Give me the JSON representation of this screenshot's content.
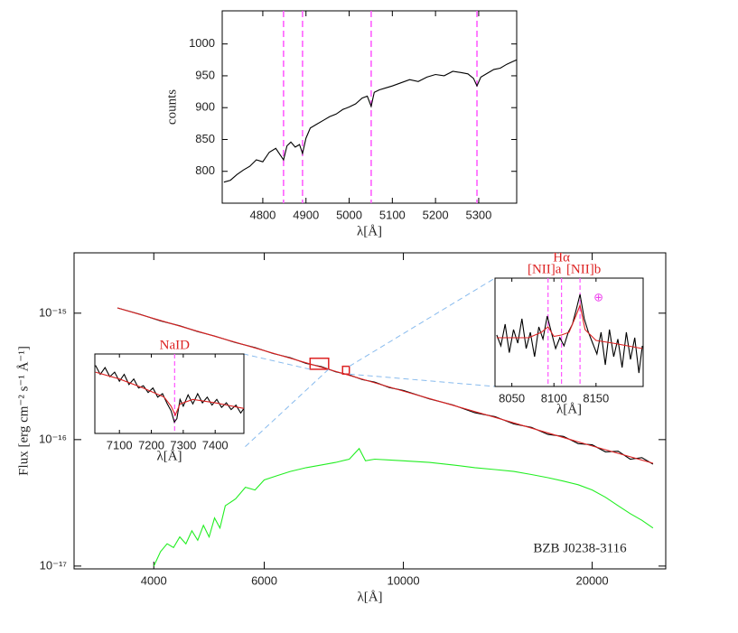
{
  "chart_data": [
    {
      "type": "line",
      "xlabel": "λ[Å]",
      "ylabel": "counts",
      "xlim": [
        4706,
        5388
      ],
      "xticks": [
        4800,
        4900,
        5000,
        5100,
        5200,
        5300
      ],
      "ylim": [
        750,
        1052
      ],
      "yticks": [
        800,
        850,
        900,
        950,
        1000
      ],
      "series": [
        {
          "color": "#000000",
          "x": [
            4710,
            4725,
            4740,
            4755,
            4770,
            4785,
            4800,
            4815,
            4830,
            4840,
            4848,
            4856,
            4865,
            4875,
            4885,
            4892,
            4900,
            4910,
            4925,
            4940,
            4955,
            4970,
            4985,
            5000,
            5015,
            5030,
            5042,
            5051,
            5058,
            5070,
            5085,
            5100,
            5120,
            5140,
            5160,
            5180,
            5200,
            5220,
            5240,
            5260,
            5275,
            5288,
            5296,
            5305,
            5320,
            5335,
            5350,
            5365,
            5378,
            5388
          ],
          "values": [
            783,
            786,
            795,
            802,
            808,
            818,
            815,
            830,
            836,
            826,
            818,
            840,
            846,
            838,
            842,
            828,
            852,
            868,
            874,
            880,
            886,
            890,
            897,
            901,
            906,
            915,
            918,
            902,
            924,
            928,
            931,
            934,
            939,
            944,
            941,
            948,
            952,
            950,
            957,
            955,
            953,
            946,
            934,
            948,
            954,
            960,
            962,
            968,
            972,
            975
          ]
        }
      ],
      "vlines": {
        "color": "#ff55ff",
        "x": [
          4848,
          4892,
          5051,
          5296
        ]
      }
    },
    {
      "type": "line",
      "xlabel": "λ[Å]",
      "ylabel": "Flux [erg cm⁻² s⁻¹ Å⁻¹]",
      "xscale": "log",
      "yscale": "log",
      "xlim": [
        2985,
        26200
      ],
      "xticks": [
        4000,
        6000,
        10000,
        20000
      ],
      "ylim": [
        9.5e-18,
        3e-15
      ],
      "yticks": [
        {
          "value": 1e-17,
          "label": "10⁻¹⁷"
        },
        {
          "value": 1e-16,
          "label": "10⁻¹⁶"
        },
        {
          "value": 1e-15,
          "label": "10⁻¹⁵"
        }
      ],
      "annotation": "BZB J0238-3116",
      "series": [
        {
          "color": "#000000",
          "x": [
            3500,
            3800,
            4100,
            4400,
            4700,
            5000,
            5400,
            5800,
            6200,
            6600,
            7000,
            7400,
            7800,
            8200,
            8600,
            9000,
            9500,
            10000,
            11000,
            12000,
            13000,
            14000,
            15000,
            16000,
            17000,
            18000,
            19000,
            20000,
            21000,
            22000,
            23000,
            24000,
            25000
          ],
          "values": [
            1.1e-15,
            9.8e-16,
            8.7e-16,
            7.95e-16,
            7.15e-16,
            6.6e-16,
            5.85e-16,
            5.35e-16,
            4.8e-16,
            4.45e-16,
            4e-16,
            3.78e-16,
            3.44e-16,
            3.25e-16,
            2.98e-16,
            2.85e-16,
            2.58e-16,
            2.45e-16,
            2.1e-16,
            1.88e-16,
            1.63e-16,
            1.52e-16,
            1.33e-16,
            1.25e-16,
            1.1e-16,
            1.06e-16,
            9.3e-17,
            9.1e-17,
            8e-17,
            8.1e-17,
            7e-17,
            7.2e-17,
            6.4e-17
          ]
        },
        {
          "color": "#dd2222",
          "x": [
            3500,
            5000,
            7000,
            10000,
            14000,
            20000,
            25000
          ],
          "values": [
            1.1e-15,
            6.58e-16,
            4.05e-16,
            2.42e-16,
            1.5e-16,
            8.9e-17,
            6.5e-17
          ]
        },
        {
          "color": "#22ee22",
          "x": [
            4000,
            4100,
            4200,
            4300,
            4400,
            4500,
            4600,
            4700,
            4800,
            4900,
            5000,
            5100,
            5200,
            5400,
            5600,
            5800,
            6000,
            6300,
            6600,
            7000,
            7400,
            7800,
            8200,
            8500,
            8700,
            9000,
            10000,
            11000,
            12000,
            13000,
            14000,
            15000,
            16000,
            17000,
            18000,
            19000,
            20000,
            21000,
            22000,
            23000,
            24000,
            25000
          ],
          "values": [
            1e-17,
            1.3e-17,
            1.5e-17,
            1.4e-17,
            1.7e-17,
            1.5e-17,
            1.9e-17,
            1.6e-17,
            2.1e-17,
            1.7e-17,
            2.4e-17,
            2e-17,
            3e-17,
            3.4e-17,
            4.2e-17,
            4e-17,
            4.8e-17,
            5.2e-17,
            5.6e-17,
            6e-17,
            6.3e-17,
            6.6e-17,
            7e-17,
            8.5e-17,
            6.8e-17,
            7e-17,
            6.8e-17,
            6.6e-17,
            6.3e-17,
            6e-17,
            5.8e-17,
            5.6e-17,
            5.3e-17,
            5e-17,
            4.7e-17,
            4.4e-17,
            4e-17,
            3.5e-17,
            3e-17,
            2.6e-17,
            2.3e-17,
            2e-17
          ]
        }
      ],
      "boxes": [
        {
          "x": [
            7100,
            7600
          ],
          "y": [
            3.6e-16,
            4.4e-16
          ]
        },
        {
          "x": [
            8000,
            8200
          ],
          "y": [
            3.3e-16,
            3.8e-16
          ]
        }
      ]
    },
    {
      "type": "line",
      "xlabel": "λ[Å]",
      "xlim": [
        7023,
        7490
      ],
      "xticks": [
        7100,
        7200,
        7300,
        7400
      ],
      "ylim": [
        0.2,
        0.9
      ],
      "series": [
        {
          "color": "#000000",
          "x": [
            7025,
            7040,
            7055,
            7070,
            7085,
            7100,
            7115,
            7130,
            7145,
            7160,
            7175,
            7190,
            7205,
            7220,
            7235,
            7250,
            7262,
            7272,
            7280,
            7290,
            7300,
            7315,
            7330,
            7345,
            7360,
            7375,
            7390,
            7405,
            7420,
            7435,
            7450,
            7465,
            7480,
            7490
          ],
          "values": [
            0.8,
            0.72,
            0.78,
            0.7,
            0.74,
            0.66,
            0.72,
            0.63,
            0.68,
            0.6,
            0.62,
            0.56,
            0.6,
            0.52,
            0.55,
            0.46,
            0.4,
            0.3,
            0.33,
            0.5,
            0.44,
            0.54,
            0.46,
            0.55,
            0.47,
            0.52,
            0.45,
            0.5,
            0.43,
            0.47,
            0.41,
            0.45,
            0.38,
            0.42
          ]
        },
        {
          "color": "#dd2222",
          "x": [
            7025,
            7100,
            7175,
            7240,
            7262,
            7275,
            7290,
            7330,
            7400,
            7490
          ],
          "values": [
            0.74,
            0.68,
            0.6,
            0.52,
            0.44,
            0.36,
            0.46,
            0.5,
            0.47,
            0.42
          ]
        }
      ],
      "lines": [
        {
          "x": 7273,
          "label": "NaID"
        }
      ]
    },
    {
      "type": "line",
      "xlabel": "λ[Å]",
      "xlim": [
        8030,
        8206
      ],
      "xticks": [
        8050,
        8100,
        8150
      ],
      "ylim": [
        0.2,
        1.0
      ],
      "series": [
        {
          "color": "#000000",
          "x": [
            8032,
            8037,
            8042,
            8047,
            8052,
            8057,
            8062,
            8067,
            8072,
            8077,
            8082,
            8087,
            8092,
            8097,
            8102,
            8107,
            8112,
            8117,
            8122,
            8127,
            8131,
            8136,
            8141,
            8146,
            8151,
            8156,
            8161,
            8166,
            8171,
            8176,
            8181,
            8186,
            8191,
            8196,
            8201,
            8205
          ],
          "values": [
            0.58,
            0.5,
            0.66,
            0.45,
            0.62,
            0.52,
            0.7,
            0.48,
            0.6,
            0.42,
            0.64,
            0.55,
            0.72,
            0.6,
            0.48,
            0.56,
            0.5,
            0.6,
            0.66,
            0.78,
            0.88,
            0.7,
            0.6,
            0.52,
            0.44,
            0.6,
            0.36,
            0.62,
            0.42,
            0.55,
            0.34,
            0.6,
            0.4,
            0.56,
            0.3,
            0.5
          ]
        },
        {
          "color": "#dd2222",
          "x": [
            8032,
            8070,
            8085,
            8093,
            8100,
            8109,
            8118,
            8126,
            8131,
            8137,
            8150,
            8170,
            8205
          ],
          "values": [
            0.56,
            0.56,
            0.6,
            0.64,
            0.57,
            0.58,
            0.6,
            0.72,
            0.8,
            0.62,
            0.54,
            0.52,
            0.48
          ]
        }
      ],
      "lines": [
        {
          "x": 8093,
          "label": "[NII]a"
        },
        {
          "x": 8109,
          "label": "Hα"
        },
        {
          "x": 8131,
          "label": "[NII]b"
        }
      ],
      "telluric": {
        "x": 8153,
        "label": "⊕"
      }
    }
  ]
}
